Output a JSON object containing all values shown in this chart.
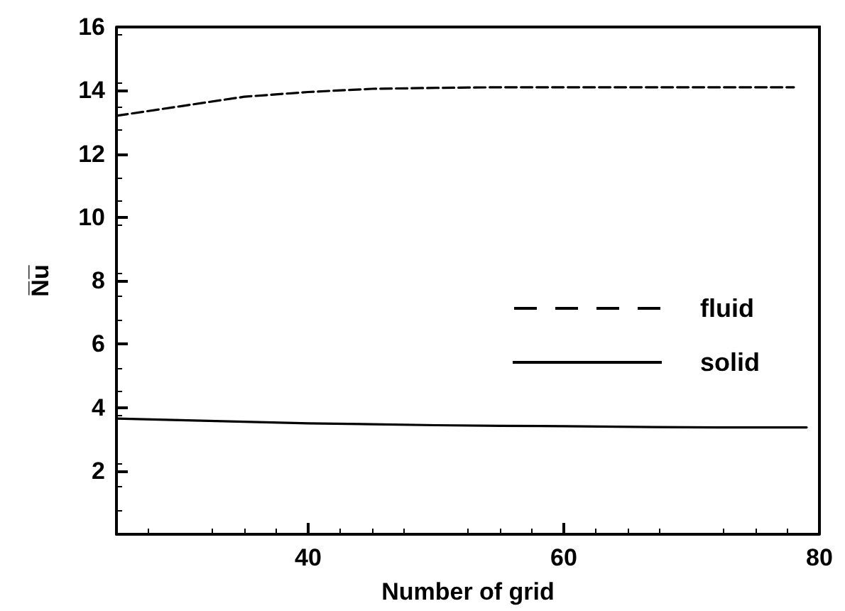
{
  "chart_data": {
    "type": "line",
    "xlabel": "Number of grid",
    "ylabel": "N̅u̅",
    "xlim": [
      25,
      80
    ],
    "xticks": [
      40,
      60,
      80
    ],
    "ylim": [
      0,
      16
    ],
    "yticks": [
      2,
      4,
      6,
      8,
      10,
      12,
      14,
      16
    ],
    "marker": "none",
    "legend": "right",
    "series": [
      {
        "name": "fluid",
        "color": "#000000",
        "line_style": "dashed",
        "x": [
          25,
          30,
          35,
          40,
          45,
          50,
          55,
          60,
          65,
          70,
          78
        ],
        "values": [
          13.2,
          13.5,
          13.8,
          13.95,
          14.05,
          14.08,
          14.1,
          14.1,
          14.1,
          14.1,
          14.1
        ]
      },
      {
        "name": "solid",
        "color": "#000000",
        "line_style": "solid",
        "x": [
          25,
          30,
          35,
          40,
          45,
          50,
          55,
          60,
          67,
          72,
          79
        ],
        "values": [
          3.65,
          3.6,
          3.55,
          3.5,
          3.47,
          3.44,
          3.42,
          3.41,
          3.38,
          3.37,
          3.37
        ]
      }
    ]
  }
}
